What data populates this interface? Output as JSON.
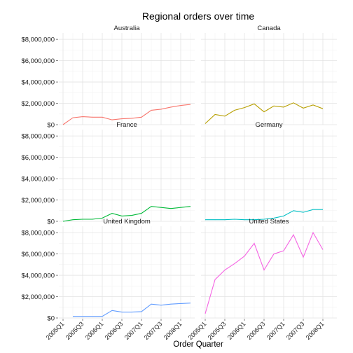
{
  "chart_data": {
    "type": "line",
    "title": "Regional orders over time",
    "xlabel": "Order Quarter",
    "ylabel": "",
    "ylim": [
      0,
      8600000
    ],
    "y_ticks": [
      "$0",
      "$2,000,000",
      "$4,000,000",
      "$6,000,000",
      "$8,000,000"
    ],
    "y_tick_values": [
      0,
      2000000,
      4000000,
      6000000,
      8000000
    ],
    "x_ticks": [
      "2005Q1",
      "2005Q3",
      "2006Q1",
      "2006Q3",
      "2007Q1",
      "2007Q3",
      "2008Q1",
      "2005Q1",
      "2005Q3",
      "2006Q1",
      "2006Q3",
      "2007Q1",
      "2007Q3",
      "2008Q1"
    ],
    "grid": true,
    "legend": "none",
    "panels": [
      {
        "name": "Australia",
        "color": "#F8766D",
        "x": [
          "2005Q1",
          "2005Q2",
          "2005Q3",
          "2005Q4",
          "2006Q1",
          "2006Q2",
          "2006Q3",
          "2006Q4",
          "2007Q1",
          "2007Q2",
          "2007Q3",
          "2007Q4",
          "2008Q1",
          "2008Q2"
        ],
        "values": [
          0,
          650000,
          750000,
          700000,
          700000,
          450000,
          550000,
          600000,
          700000,
          1350000,
          1450000,
          1650000,
          1800000,
          1900000
        ]
      },
      {
        "name": "Canada",
        "color": "#B79F00",
        "x": [
          "2005Q1",
          "2005Q2",
          "2005Q3",
          "2005Q4",
          "2006Q1",
          "2006Q2",
          "2006Q3",
          "2006Q4",
          "2007Q1",
          "2007Q2",
          "2007Q3",
          "2007Q4",
          "2008Q1",
          "2008Q2"
        ],
        "values": [
          100000,
          950000,
          800000,
          1350000,
          1600000,
          1950000,
          1200000,
          1750000,
          1650000,
          2050000,
          1550000,
          1850000,
          1500000,
          null
        ]
      },
      {
        "name": "France",
        "color": "#00BA38",
        "x": [
          "2005Q1",
          "2005Q2",
          "2005Q3",
          "2005Q4",
          "2006Q1",
          "2006Q2",
          "2006Q3",
          "2006Q4",
          "2007Q1",
          "2007Q2",
          "2007Q3",
          "2007Q4",
          "2008Q1",
          "2008Q2"
        ],
        "values": [
          0,
          150000,
          200000,
          200000,
          300000,
          750000,
          500000,
          550000,
          750000,
          1400000,
          1300000,
          1200000,
          1300000,
          1400000
        ]
      },
      {
        "name": "Germany",
        "color": "#00BFC4",
        "x": [
          "2005Q1",
          "2005Q2",
          "2005Q3",
          "2005Q4",
          "2006Q1",
          "2006Q2",
          "2006Q3",
          "2006Q4",
          "2007Q1",
          "2007Q2",
          "2007Q3",
          "2007Q4",
          "2008Q1",
          "2008Q2"
        ],
        "values": [
          150000,
          150000,
          150000,
          200000,
          150000,
          150000,
          200000,
          300000,
          500000,
          1000000,
          850000,
          1100000,
          1100000,
          null
        ]
      },
      {
        "name": "United Kingdom",
        "color": "#619CFF",
        "x": [
          "2005Q1",
          "2005Q2",
          "2005Q3",
          "2005Q4",
          "2006Q1",
          "2006Q2",
          "2006Q3",
          "2006Q4",
          "2007Q1",
          "2007Q2",
          "2007Q3",
          "2007Q4",
          "2008Q1",
          "2008Q2"
        ],
        "values": [
          null,
          150000,
          150000,
          150000,
          150000,
          700000,
          550000,
          550000,
          600000,
          1300000,
          1200000,
          1300000,
          1350000,
          1400000
        ]
      },
      {
        "name": "United States",
        "color": "#F564E3",
        "x": [
          "2005Q1",
          "2005Q2",
          "2005Q3",
          "2005Q4",
          "2006Q1",
          "2006Q2",
          "2006Q3",
          "2006Q4",
          "2007Q1",
          "2007Q2",
          "2007Q3",
          "2007Q4",
          "2008Q1",
          "2008Q2"
        ],
        "values": [
          400000,
          3600000,
          4500000,
          5100000,
          5800000,
          7000000,
          4500000,
          6000000,
          6300000,
          7800000,
          5700000,
          8000000,
          6400000,
          null
        ]
      }
    ]
  }
}
